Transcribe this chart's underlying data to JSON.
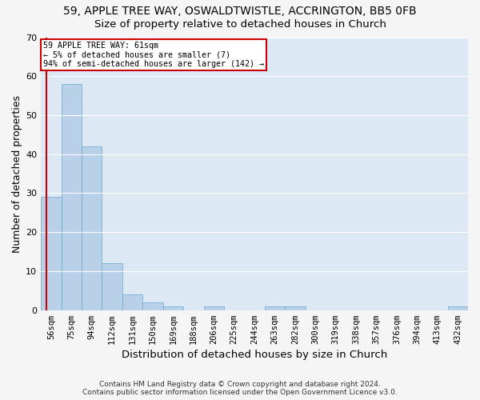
{
  "title1": "59, APPLE TREE WAY, OSWALDTWISTLE, ACCRINGTON, BB5 0FB",
  "title2": "Size of property relative to detached houses in Church",
  "xlabel": "Distribution of detached houses by size in Church",
  "ylabel": "Number of detached properties",
  "footer1": "Contains HM Land Registry data © Crown copyright and database right 2024.",
  "footer2": "Contains public sector information licensed under the Open Government Licence v3.0.",
  "annotation_line1": "59 APPLE TREE WAY: 61sqm",
  "annotation_line2": "← 5% of detached houses are smaller (7)",
  "annotation_line3": "94% of semi-detached houses are larger (142) →",
  "bin_labels": [
    "56sqm",
    "75sqm",
    "94sqm",
    "112sqm",
    "131sqm",
    "150sqm",
    "169sqm",
    "188sqm",
    "206sqm",
    "225sqm",
    "244sqm",
    "263sqm",
    "282sqm",
    "300sqm",
    "319sqm",
    "338sqm",
    "357sqm",
    "376sqm",
    "394sqm",
    "413sqm",
    "432sqm"
  ],
  "bar_values": [
    29,
    58,
    42,
    12,
    4,
    2,
    1,
    0,
    1,
    0,
    0,
    1,
    1,
    0,
    0,
    0,
    0,
    0,
    0,
    0,
    1
  ],
  "bar_color": "#b8d0e8",
  "bar_edge_color": "#6aaad4",
  "property_line_color": "#cc0000",
  "annotation_box_color": "#cc0000",
  "ylim": [
    0,
    70
  ],
  "yticks": [
    0,
    10,
    20,
    30,
    40,
    50,
    60,
    70
  ],
  "bg_color": "#dde8f5",
  "grid_color": "#ffffff",
  "fig_bg_color": "#f5f5f5",
  "title_fontsize": 10,
  "subtitle_fontsize": 9.5,
  "axis_label_fontsize": 9,
  "tick_fontsize": 7.5,
  "footer_fontsize": 6.5
}
